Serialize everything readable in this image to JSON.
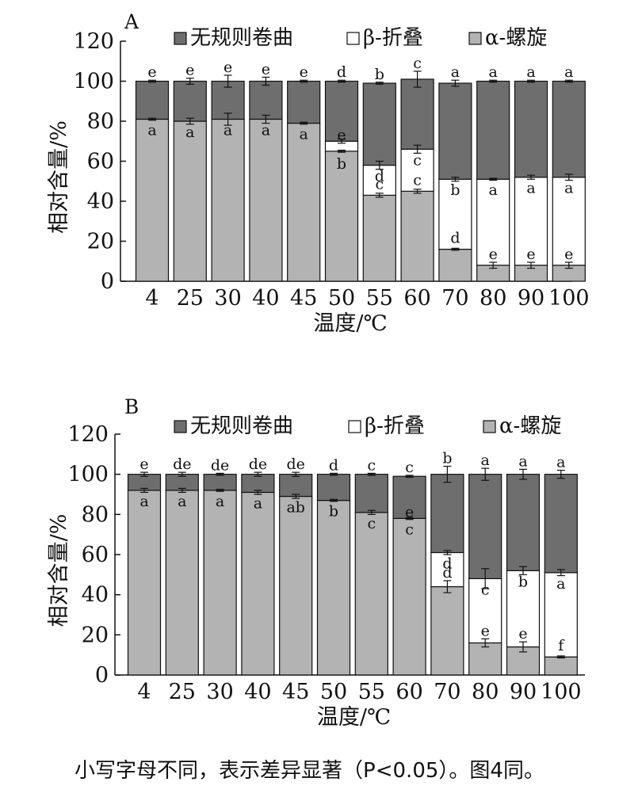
{
  "colors": {
    "random_coil": "#6e6e6e",
    "beta_sheet": "#ffffff",
    "alpha_helix": "#b3b3b3",
    "stroke": "#111111"
  },
  "caption": "小写字母不同，表示差异显著（P<0.05）。图4同。",
  "chart_data": [
    {
      "type": "bar",
      "stacked": true,
      "panel_label": "A",
      "xlabel": "温度/℃",
      "ylabel": "相对含量/%",
      "ylim": [
        0,
        120
      ],
      "yticks": [
        0,
        20,
        40,
        60,
        80,
        100,
        120
      ],
      "categories": [
        "4",
        "25",
        "30",
        "40",
        "45",
        "50",
        "55",
        "60",
        "70",
        "80",
        "90",
        "100"
      ],
      "legend_position": "top",
      "series": [
        {
          "name": "α-螺旋",
          "key": "alpha_helix",
          "values": [
            81,
            80,
            81,
            81,
            79,
            65,
            43,
            45,
            16,
            8,
            8,
            8
          ],
          "errors": [
            0.5,
            1.5,
            3,
            2,
            0.5,
            0.5,
            1,
            1,
            0.5,
            1.5,
            1.5,
            1.5
          ],
          "letters": [
            "a",
            "a",
            "a",
            "a",
            "a",
            "b",
            "c",
            "c",
            "d",
            "e",
            "e",
            "e"
          ]
        },
        {
          "name": "β-折叠",
          "key": "beta_sheet",
          "values": [
            0,
            0,
            0,
            0,
            0,
            5,
            15,
            21,
            35,
            43,
            44,
            44
          ],
          "errors": [
            0,
            0,
            0,
            0,
            0,
            1,
            2,
            2,
            1,
            0.5,
            1,
            1.5
          ],
          "letters": [
            "",
            "",
            "",
            "",
            "",
            "e",
            "d",
            "c",
            "b",
            "a",
            "a",
            "a"
          ]
        },
        {
          "name": "无规则卷曲",
          "key": "random_coil",
          "values": [
            19,
            20,
            19,
            19,
            21,
            30,
            41,
            35,
            48,
            49,
            48,
            48
          ],
          "errors": [
            0.5,
            1.5,
            3,
            2,
            0.5,
            0.5,
            0.5,
            4,
            1.5,
            0.5,
            0.5,
            0.5
          ],
          "letters": [
            "e",
            "e",
            "e",
            "e",
            "e",
            "d",
            "b",
            "c",
            "a",
            "a",
            "a",
            "a"
          ]
        }
      ]
    },
    {
      "type": "bar",
      "stacked": true,
      "panel_label": "B",
      "xlabel": "温度/℃",
      "ylabel": "相对含量/%",
      "ylim": [
        0,
        120
      ],
      "yticks": [
        0,
        20,
        40,
        60,
        80,
        100,
        120
      ],
      "categories": [
        "4",
        "25",
        "30",
        "40",
        "45",
        "50",
        "55",
        "60",
        "70",
        "80",
        "90",
        "100"
      ],
      "legend_position": "top",
      "series": [
        {
          "name": "α-螺旋",
          "key": "alpha_helix",
          "values": [
            92,
            92,
            92,
            91,
            89,
            87,
            81,
            78,
            44,
            16,
            14,
            9
          ],
          "errors": [
            1,
            1,
            0.5,
            1,
            1,
            0.5,
            1,
            0.5,
            3,
            2,
            2.5,
            0.5
          ],
          "letters": [
            "a",
            "a",
            "a",
            "a",
            "ab",
            "b",
            "c",
            "c",
            "d",
            "e",
            "e",
            "f"
          ]
        },
        {
          "name": "β-折叠",
          "key": "beta_sheet",
          "values": [
            0,
            0,
            0,
            0,
            0,
            0,
            0,
            0,
            17,
            32,
            38,
            42
          ],
          "errors": [
            0,
            0,
            0,
            0,
            0,
            0,
            0,
            0,
            1,
            5,
            2,
            1.5
          ],
          "letters": [
            "",
            "",
            "",
            "",
            "",
            "",
            "",
            "e",
            "d",
            "c",
            "b",
            "a"
          ]
        },
        {
          "name": "无规则卷曲",
          "key": "random_coil",
          "values": [
            8,
            8,
            8,
            9,
            11,
            13,
            19,
            21,
            39,
            52,
            48,
            49
          ],
          "errors": [
            1,
            1,
            0.5,
            1,
            1,
            0.5,
            0.5,
            0.5,
            4,
            3,
            2.5,
            2
          ],
          "letters": [
            "e",
            "de",
            "de",
            "de",
            "de",
            "d",
            "c",
            "c",
            "b",
            "a",
            "a",
            "a"
          ]
        }
      ]
    }
  ]
}
